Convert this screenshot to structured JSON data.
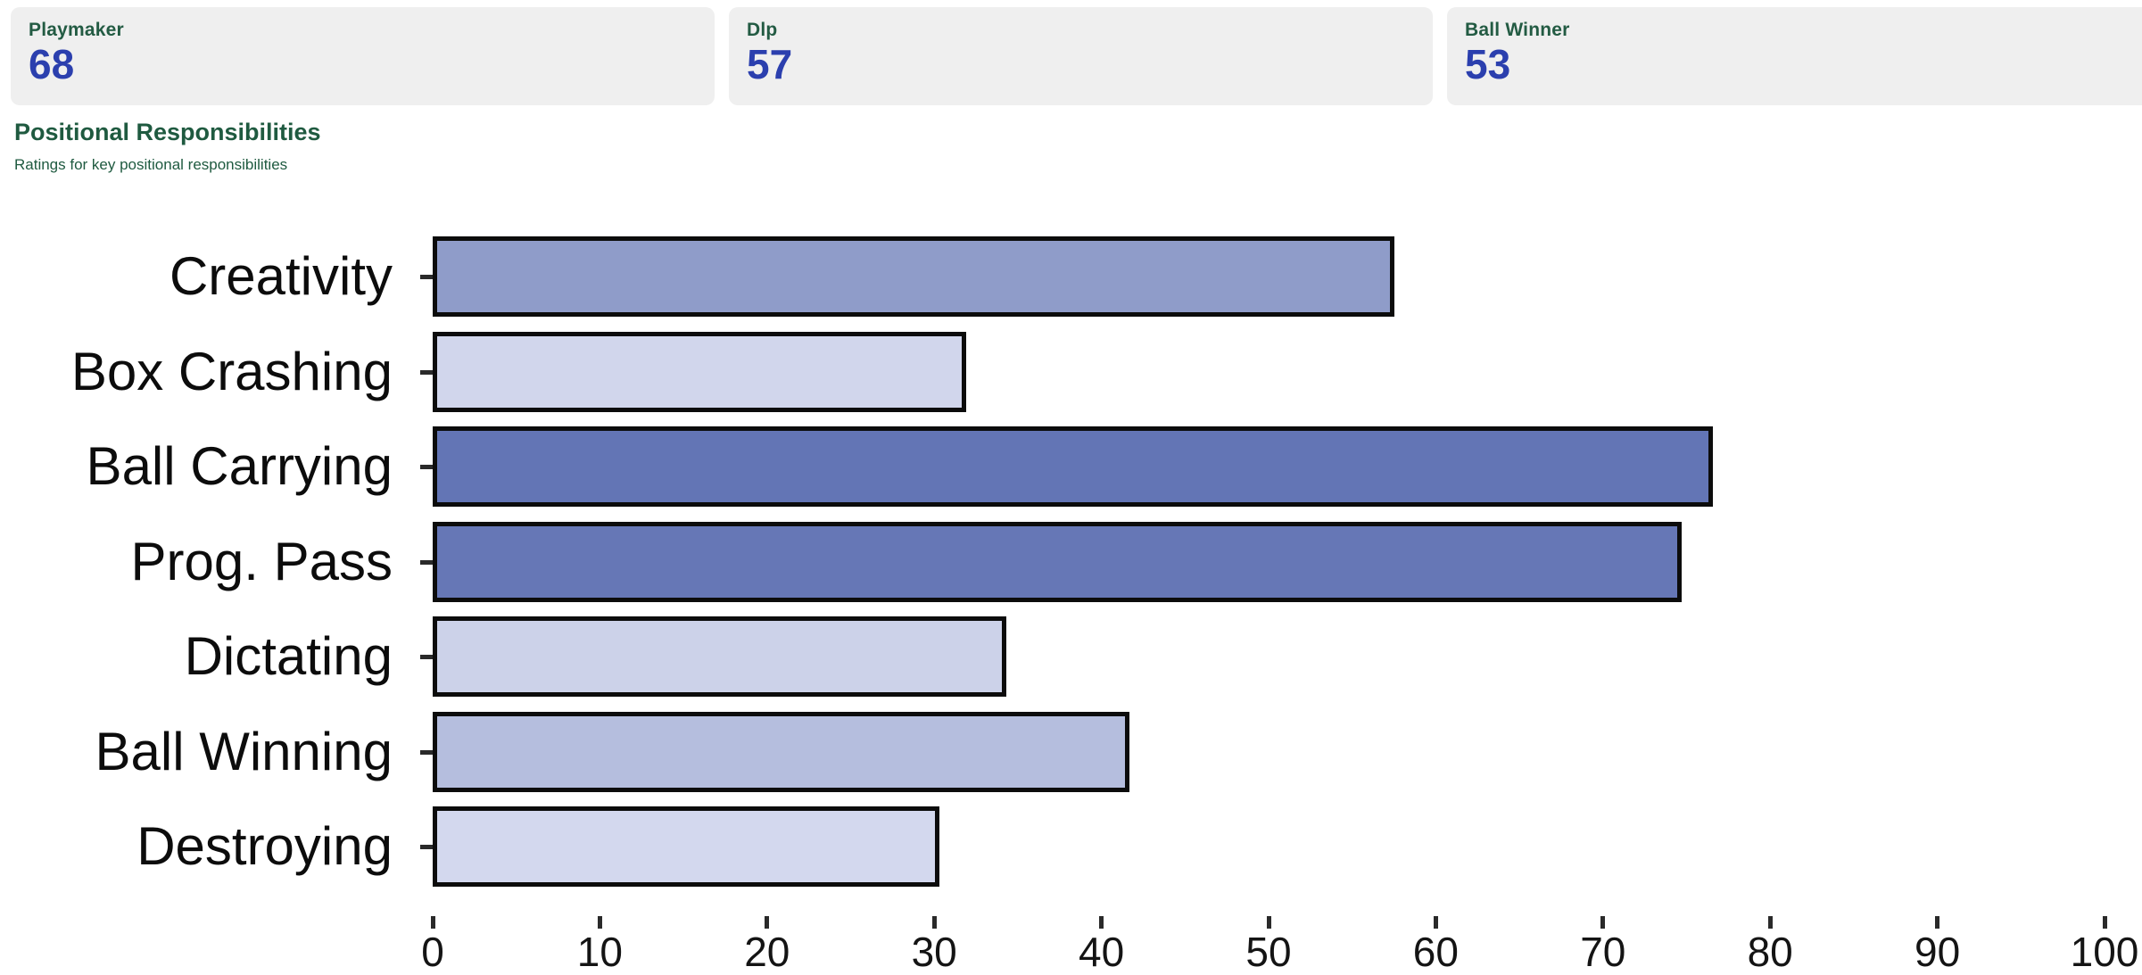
{
  "cards": [
    {
      "label": "Playmaker",
      "value": "68"
    },
    {
      "label": "Dlp",
      "value": "57"
    },
    {
      "label": "Ball Winner",
      "value": "53"
    }
  ],
  "section": {
    "title": "Positional Responsibilities",
    "subtitle": "Ratings for key positional responsibilities"
  },
  "colors": {
    "card_bg": "#efefef",
    "heading_green": "#1f5a40",
    "card_value_blue": "#2b3fae",
    "bar_border": "#0c0c0c",
    "axis_text": "#141414"
  },
  "chart_data": {
    "type": "bar",
    "orientation": "horizontal",
    "title": "Positional Responsibilities",
    "xlabel": "",
    "ylabel": "",
    "xlim": [
      0,
      100
    ],
    "grid": false,
    "categories": [
      "Creativity",
      "Box Crashing",
      "Ball Carrying",
      "Prog. Pass",
      "Dictating",
      "Ball Winning",
      "Destroying"
    ],
    "values": [
      57.5,
      31.9,
      76.6,
      74.7,
      34.3,
      41.7,
      30.3
    ],
    "bar_colors": [
      "#8f9cc9",
      "#d1d6ec",
      "#6375b5",
      "#6677b6",
      "#ccd2e9",
      "#b5bede",
      "#d3d8ee"
    ],
    "x_ticks": [
      0,
      10,
      20,
      30,
      40,
      50,
      60,
      70,
      80,
      90,
      100
    ]
  }
}
